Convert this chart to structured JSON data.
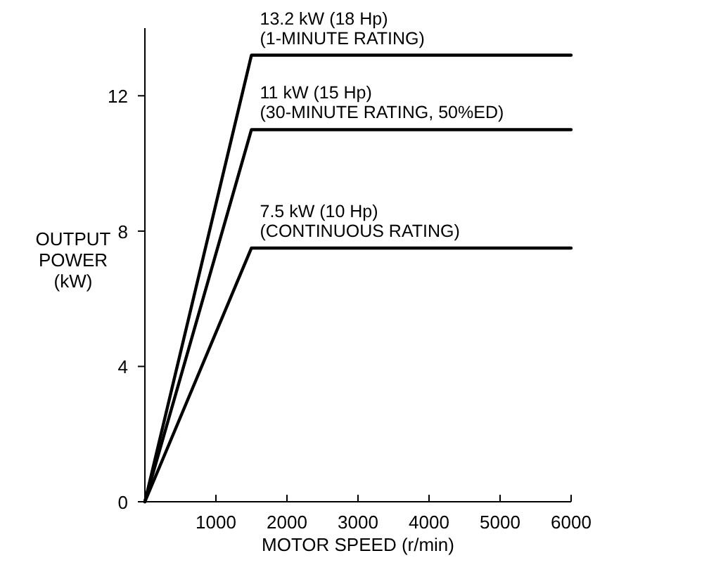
{
  "chart_data": {
    "type": "line",
    "xlabel": "MOTOR SPEED (r/min)",
    "ylabel": "OUTPUT\nPOWER\n(kW)",
    "xlim": [
      0,
      6000
    ],
    "xticks": [
      1000,
      2000,
      3000,
      4000,
      5000,
      6000
    ],
    "ylim": [
      0,
      14
    ],
    "yticks": [
      0,
      4,
      8,
      12
    ],
    "marker": "none",
    "line_style": "solid",
    "series": [
      {
        "color": "#000000",
        "x": [
          0,
          1500,
          6000
        ],
        "values": [
          0,
          13.2,
          13.2
        ]
      },
      {
        "color": "#000000",
        "x": [
          0,
          1500,
          6000
        ],
        "values": [
          0,
          11,
          11
        ]
      },
      {
        "color": "#000000",
        "x": [
          0,
          1500,
          6000
        ],
        "values": [
          0,
          7.5,
          7.5
        ]
      }
    ],
    "annotations": [
      "13.2 kW (18 Hp)\n(1-MINUTE RATING)",
      "11 kW (15 Hp)\n(30-MINUTE RATING, 50%ED)",
      "7.5 kW (10 Hp)\n(CONTINUOUS RATING)"
    ]
  }
}
